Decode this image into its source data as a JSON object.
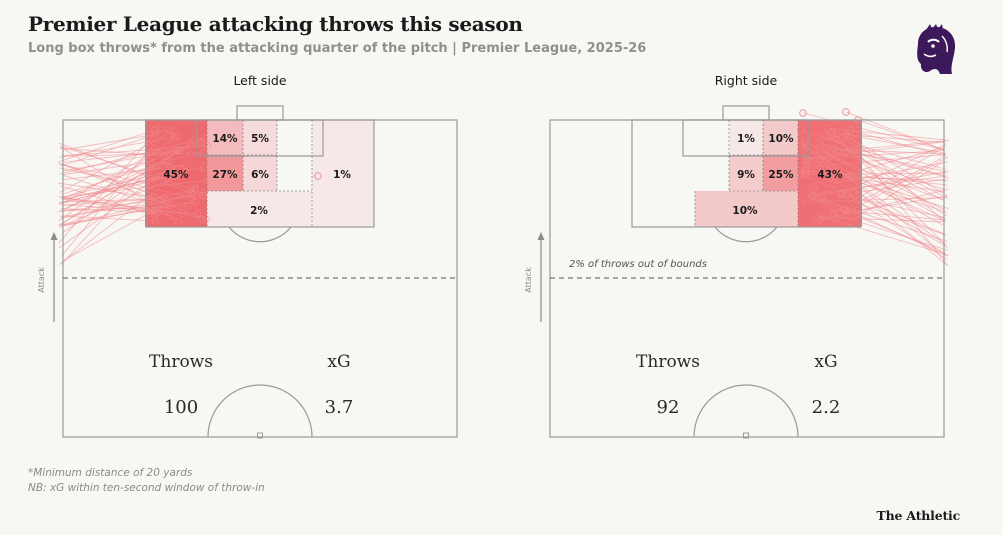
{
  "title": "Premier League attacking throws this season",
  "subtitle": "Long box throws* from the attacking quarter of the pitch | Premier League, 2025-26",
  "footnotes": [
    "*Minimum distance of 20 yards",
    "NB: xG within ten-second window of throw-in"
  ],
  "brand": "The Athletic",
  "logo_icon": "premier-league-lion-icon",
  "colors": {
    "heat": "#ef6a6f",
    "lines": "#f08a8e",
    "pitch_lines": "#9a9a9a",
    "logo": "#3d195b"
  },
  "chart_data": [
    {
      "type": "heatmap",
      "title": "Left side",
      "direction_label": "Attack",
      "throw_origin_side": "left",
      "zones": [
        {
          "zone": "near-post wide",
          "value": 45,
          "label": "45%"
        },
        {
          "zone": "six-yard top near",
          "value": 14,
          "label": "14%"
        },
        {
          "zone": "six-yard top far",
          "value": 5,
          "label": "5%"
        },
        {
          "zone": "six-yard middle near",
          "value": 27,
          "label": "27%"
        },
        {
          "zone": "six-yard middle far",
          "value": 6,
          "label": "6%"
        },
        {
          "zone": "far side of box",
          "value": 1,
          "label": "1%"
        },
        {
          "zone": "penalty spot area",
          "value": 2,
          "label": "2%"
        }
      ],
      "annotation": "",
      "stats": {
        "throws_label": "Throws",
        "throws": "100",
        "xg_label": "xG",
        "xg": "3.7"
      }
    },
    {
      "type": "heatmap",
      "title": "Right side",
      "direction_label": "Attack",
      "throw_origin_side": "right",
      "zones": [
        {
          "zone": "six-yard top far",
          "value": 1,
          "label": "1%"
        },
        {
          "zone": "six-yard top near",
          "value": 10,
          "label": "10%"
        },
        {
          "zone": "six-yard middle far",
          "value": 9,
          "label": "9%"
        },
        {
          "zone": "six-yard middle near",
          "value": 25,
          "label": "25%"
        },
        {
          "zone": "near-post wide",
          "value": 43,
          "label": "43%"
        },
        {
          "zone": "penalty spot area",
          "value": 10,
          "label": "10%"
        }
      ],
      "annotation": "2% of throws out of bounds",
      "stats": {
        "throws_label": "Throws",
        "throws": "92",
        "xg_label": "xG",
        "xg": "2.2"
      }
    }
  ]
}
